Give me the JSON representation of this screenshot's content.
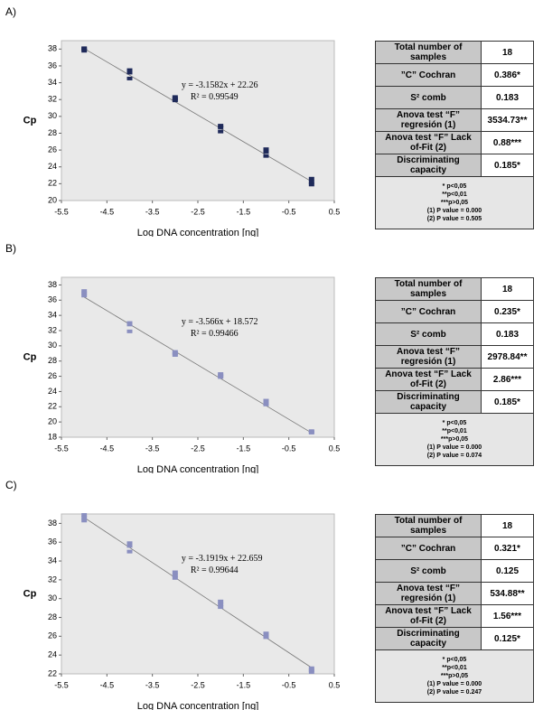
{
  "chart_data": [
    {
      "type": "scatter",
      "panel": "A)",
      "x_label": "Log DNA concentration [ng]",
      "y_label": "Cp",
      "x": [
        -5,
        -5,
        -5,
        -4,
        -4,
        -4,
        -3,
        -3,
        -3,
        -2,
        -2,
        -2,
        -1,
        -1,
        -1,
        0,
        0,
        0
      ],
      "values": [
        37.8,
        38.0,
        38.1,
        34.5,
        35.2,
        35.5,
        31.9,
        32.1,
        32.3,
        28.2,
        28.7,
        28.9,
        25.3,
        25.8,
        26.1,
        21.9,
        22.2,
        22.6
      ],
      "color": "#1f2a5a",
      "fit": {
        "slope": -3.1582,
        "intercept": 22.26
      },
      "equation": "y = -3.1582x + 22.26",
      "r2": "R² = 0.99549",
      "xlim": [
        -5.5,
        0.5
      ],
      "xticks": [
        -5.5,
        -4.5,
        -3.5,
        -2.5,
        -1.5,
        -0.5,
        0.5
      ],
      "ylim": [
        20,
        39
      ],
      "yticks": [
        20,
        22,
        24,
        26,
        28,
        30,
        32,
        34,
        36,
        38
      ]
    },
    {
      "type": "scatter",
      "panel": "B)",
      "x_label": "Log DNA concentration [ng]",
      "y_label": "Cp",
      "x": [
        -5,
        -5,
        -5,
        -4,
        -4,
        -4,
        -3,
        -3,
        -3,
        -2,
        -2,
        -2,
        -1,
        -1,
        -1,
        0,
        0,
        0
      ],
      "values": [
        36.6,
        36.9,
        37.2,
        31.9,
        32.8,
        33.0,
        28.8,
        29.0,
        29.2,
        25.9,
        26.1,
        26.3,
        22.3,
        22.6,
        22.8,
        18.6,
        18.7,
        18.8
      ],
      "color": "#8a8fc0",
      "fit": {
        "slope": -3.566,
        "intercept": 18.572
      },
      "equation": "y = -3.566x + 18.572",
      "r2": "R² = 0.99466",
      "xlim": [
        -5.5,
        0.5
      ],
      "xticks": [
        -5.5,
        -4.5,
        -3.5,
        -2.5,
        -1.5,
        -0.5,
        0.5
      ],
      "ylim": [
        18,
        39
      ],
      "yticks": [
        18,
        20,
        22,
        24,
        26,
        28,
        30,
        32,
        34,
        36,
        38
      ]
    },
    {
      "type": "scatter",
      "panel": "C)",
      "x_label": "Log DNA concentration [ng]",
      "y_label": "Cp",
      "x": [
        -5,
        -5,
        -5,
        -4,
        -4,
        -4,
        -3,
        -3,
        -3,
        -2,
        -2,
        -2,
        -1,
        -1,
        -1,
        0,
        0,
        0
      ],
      "values": [
        38.3,
        38.6,
        38.9,
        35.0,
        35.6,
        35.9,
        32.2,
        32.5,
        32.8,
        29.1,
        29.4,
        29.7,
        25.9,
        26.1,
        26.3,
        22.2,
        22.4,
        22.6
      ],
      "color": "#8a8fc0",
      "fit": {
        "slope": -3.1919,
        "intercept": 22.659
      },
      "equation": "y = -3.1919x + 22.659",
      "r2": "R² = 0.99644",
      "xlim": [
        -5.5,
        0.5
      ],
      "xticks": [
        -5.5,
        -4.5,
        -3.5,
        -2.5,
        -1.5,
        -0.5,
        0.5
      ],
      "ylim": [
        22,
        39
      ],
      "yticks": [
        22,
        24,
        26,
        28,
        30,
        32,
        34,
        36,
        38
      ]
    }
  ],
  "tables": [
    {
      "rows": [
        [
          "Total number of samples",
          "18"
        ],
        [
          "”C” Cochran",
          "0.386*"
        ],
        [
          "S² comb",
          "0.183"
        ],
        [
          "Anova test “F” regresión (1)",
          "3534.73**"
        ],
        [
          "Anova test “F” Lack of-Fit (2)",
          "0.88***"
        ],
        [
          "Discriminating capacity",
          "0.185*"
        ]
      ],
      "notes": [
        "* p<0,05",
        "**p<0,01",
        "***p>0,05",
        "(1) P value = 0.000",
        "(2) P value = 0.505"
      ]
    },
    {
      "rows": [
        [
          "Total number of samples",
          "18"
        ],
        [
          "”C” Cochran",
          "0.235*"
        ],
        [
          "S² comb",
          "0.183"
        ],
        [
          "Anova test “F” regresión (1)",
          "2978.84**"
        ],
        [
          "Anova test “F” Lack of-Fit (2)",
          "2.86***"
        ],
        [
          "Discriminating capacity",
          "0.185*"
        ]
      ],
      "notes": [
        "* p<0,05",
        "**p<0,01",
        "***p>0,05",
        "(1) P value = 0.000",
        "(2) P value = 0.074"
      ]
    },
    {
      "rows": [
        [
          "Total number of samples",
          "18"
        ],
        [
          "”C” Cochran",
          "0.321*"
        ],
        [
          "S² comb",
          "0.125"
        ],
        [
          "Anova test “F” regresión (1)",
          "534.88**"
        ],
        [
          "Anova test “F” Lack of-Fit (2)",
          "1.56***"
        ],
        [
          "Discriminating capacity",
          "0.125*"
        ]
      ],
      "notes": [
        "* p<0,05",
        "**p<0,01",
        "***p>0,05",
        "(1) P value = 0.000",
        "(2) P value = 0.247"
      ]
    }
  ]
}
